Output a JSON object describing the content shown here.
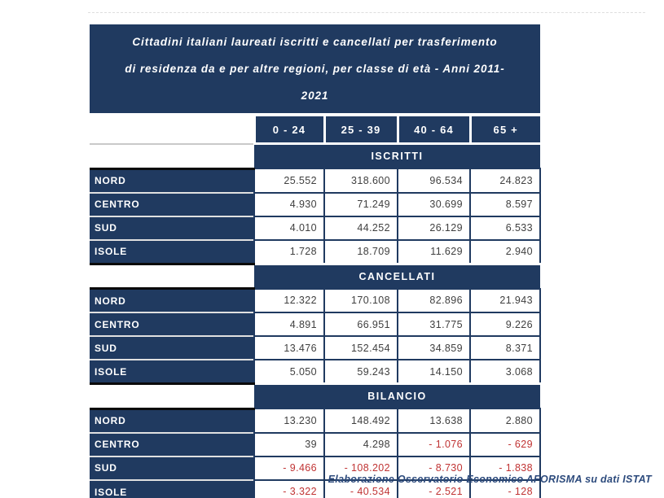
{
  "title_lines": [
    "Cittadini italiani laureati iscritti e cancellati per trasferimento",
    "di residenza da e per altre regioni, per classe di età - Anni 2011-",
    "2021"
  ],
  "footer": "Elaborazione Osservatorio Economico AFORISMA su dati ISTAT",
  "colors": {
    "navy": "#203A60",
    "negative_red": "#C03333",
    "value_text": "#3F3F3F",
    "label_separator": "#E0E0E0",
    "section_divider_black": "#0A0A0A",
    "footer_blue": "#2C4A7C",
    "background": "#FFFFFF"
  },
  "chart_data": {
    "type": "table",
    "title": "Cittadini italiani laureati iscritti e cancellati per trasferimento di residenza da e per altre regioni, per classe di età - Anni 2011-2021",
    "columns": [
      "0 - 24",
      "25 - 39",
      "40 - 64",
      "65 +"
    ],
    "row_labels": [
      "NORD",
      "CENTRO",
      "SUD",
      "ISOLE"
    ],
    "sections": [
      {
        "label": "ISCRITTI",
        "rows": [
          {
            "label": "NORD",
            "values": [
              "25.552",
              "318.600",
              "96.534",
              "24.823"
            ]
          },
          {
            "label": "CENTRO",
            "values": [
              "4.930",
              "71.249",
              "30.699",
              "8.597"
            ]
          },
          {
            "label": "SUD",
            "values": [
              "4.010",
              "44.252",
              "26.129",
              "6.533"
            ]
          },
          {
            "label": "ISOLE",
            "values": [
              "1.728",
              "18.709",
              "11.629",
              "2.940"
            ]
          }
        ]
      },
      {
        "label": "CANCELLATI",
        "rows": [
          {
            "label": "NORD",
            "values": [
              "12.322",
              "170.108",
              "82.896",
              "21.943"
            ]
          },
          {
            "label": "CENTRO",
            "values": [
              "4.891",
              "66.951",
              "31.775",
              "9.226"
            ]
          },
          {
            "label": "SUD",
            "values": [
              "13.476",
              "152.454",
              "34.859",
              "8.371"
            ]
          },
          {
            "label": "ISOLE",
            "values": [
              "5.050",
              "59.243",
              "14.150",
              "3.068"
            ]
          }
        ]
      },
      {
        "label": "BILANCIO",
        "rows": [
          {
            "label": "NORD",
            "values": [
              "13.230",
              "148.492",
              "13.638",
              "2.880"
            ]
          },
          {
            "label": "CENTRO",
            "values": [
              "39",
              "4.298",
              "- 1.076",
              "- 629"
            ]
          },
          {
            "label": "SUD",
            "values": [
              "- 9.466",
              "- 108.202",
              "- 8.730",
              "- 1.838"
            ]
          },
          {
            "label": "ISOLE",
            "values": [
              "- 3.322",
              "- 40.534",
              "- 2.521",
              "- 128"
            ]
          }
        ]
      }
    ],
    "source": "Elaborazione Osservatorio Economico AFORISMA su dati ISTAT"
  }
}
